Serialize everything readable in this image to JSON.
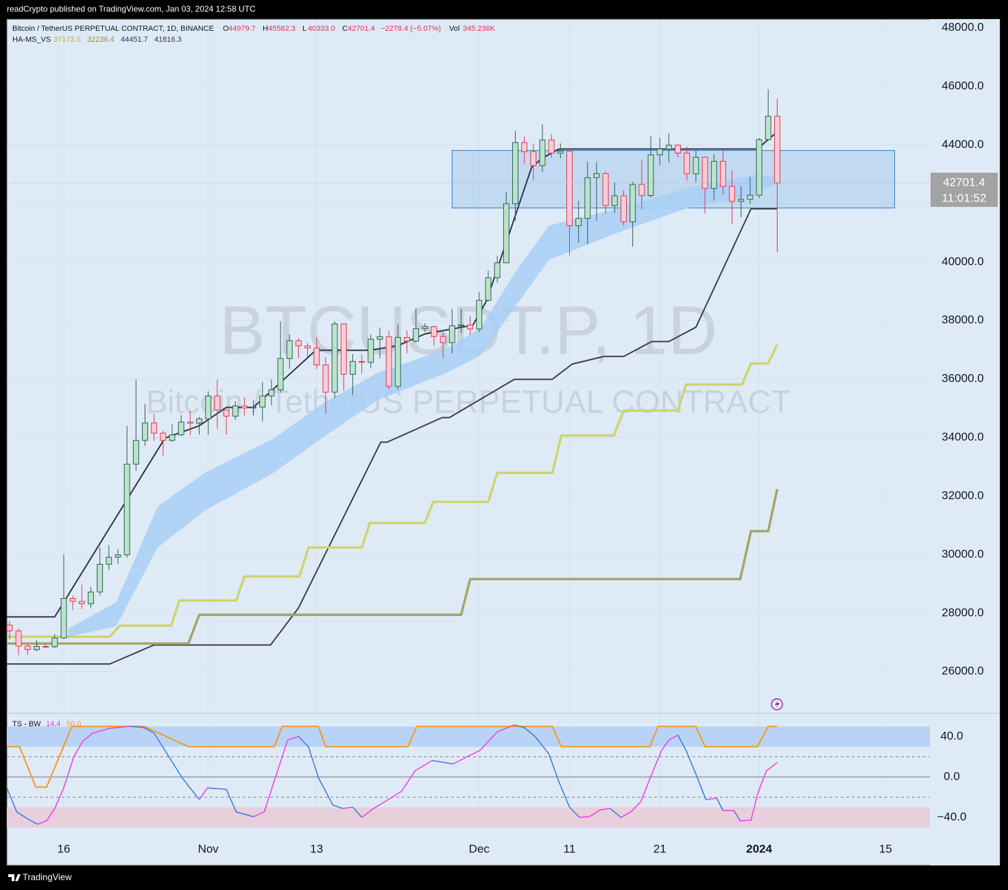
{
  "header": {
    "publisher": "readCrypto published on TradingView.com, Jan 03, 2024 12:58 UTC",
    "brand": "TradingView"
  },
  "chart_data": [
    {
      "type": "candlestick",
      "title": "Bitcoin / TetherUS PERPETUAL CONTRACT, 1D, BINANCE",
      "watermark": "BTCUSDT.P, 1D",
      "watermark_subtitle": "Bitcoin / TetherUS PERPETUAL CONTRACT",
      "ohlc_legend": [
        {
          "label": "O",
          "value": "44979.7"
        },
        {
          "label": "H",
          "value": "45582.3"
        },
        {
          "label": "L",
          "value": "40333.0"
        },
        {
          "label": "C",
          "value": "42701.4"
        }
      ],
      "change": "−2278.4 (−5.07%)",
      "volume_label": "Vol",
      "volume": "345.236K",
      "indicator_name": "HA-MS_VS",
      "indicator_values": [
        {
          "value": "37173.5",
          "color": "#b4b82c"
        },
        {
          "value": "32236.4",
          "color": "#8e9040"
        },
        {
          "value": "44451.7",
          "color": "#2f3440"
        },
        {
          "value": "41816.3",
          "color": "#2f3440"
        }
      ],
      "countdown": "11:01:52",
      "up_color": "#b9e4c9",
      "up_border": "#2e5c52",
      "down_color": "#f8cdd6",
      "down_border": "#e0334f",
      "xlim": [
        -0.3,
        101.9
      ],
      "ylim": [
        24600,
        48250
      ],
      "yticks": [
        {
          "value": 26000,
          "label": "26000.0"
        },
        {
          "value": 28000,
          "label": "28000.0"
        },
        {
          "value": 30000,
          "label": "30000.0"
        },
        {
          "value": 32000,
          "label": "32000.0"
        },
        {
          "value": 34000,
          "label": "34000.0"
        },
        {
          "value": 36000,
          "label": "36000.0"
        },
        {
          "value": 38000,
          "label": "38000.0"
        },
        {
          "value": 40000,
          "label": "40000.0"
        },
        {
          "value": 42000,
          "label": "42000.0"
        },
        {
          "value": 44000,
          "label": "44000.0"
        },
        {
          "value": 46000,
          "label": "46000.0"
        },
        {
          "value": 48000,
          "label": "48000.0"
        }
      ],
      "grid": true,
      "open": [
        27590,
        27390,
        26870,
        26750,
        26860,
        26850,
        27150,
        28500,
        28400,
        28320,
        28720,
        29670,
        29910,
        29990,
        33090,
        33900,
        34500,
        34150,
        33900,
        34090,
        34530,
        34490,
        34640,
        35420,
        34940,
        34730,
        35080,
        35010,
        35040,
        35420,
        35630,
        36700,
        37310,
        37130,
        37060,
        36480,
        35550,
        37880,
        36160,
        36600,
        36570,
        37360,
        37450,
        35750,
        37420,
        37290,
        37720,
        37790,
        37450,
        37240,
        37820,
        37850,
        37710,
        38690,
        39460,
        39970,
        41990,
        44080,
        43770,
        43290,
        44170,
        43720,
        43790,
        41240,
        41490,
        42880,
        43020,
        41930,
        42260,
        41370,
        42650,
        42270,
        43660,
        43860,
        43990,
        43720,
        43010,
        43580,
        42510,
        43440,
        42580,
        42070,
        42140,
        42280,
        44180,
        44979.7
      ],
      "high": [
        27730,
        27480,
        26940,
        27080,
        26970,
        27280,
        30000,
        28600,
        28970,
        28900,
        30250,
        30320,
        30180,
        34400,
        35980,
        35150,
        34800,
        34230,
        34450,
        34760,
        34900,
        34700,
        35580,
        35980,
        34950,
        35240,
        35380,
        35280,
        35900,
        35980,
        37970,
        37520,
        37400,
        37230,
        37420,
        36750,
        37970,
        37900,
        36850,
        36850,
        37520,
        37750,
        37650,
        37880,
        37660,
        38420,
        37900,
        37830,
        37580,
        38400,
        38400,
        38150,
        38980,
        39700,
        40200,
        42400,
        44480,
        44290,
        44050,
        44700,
        44370,
        44050,
        43800,
        42090,
        43430,
        43420,
        43090,
        42720,
        42440,
        42750,
        43480,
        44290,
        44240,
        44400,
        44020,
        43940,
        43800,
        43600,
        43690,
        43800,
        43130,
        42600,
        42900,
        44240,
        45900,
        45582.3
      ],
      "low": [
        27100,
        26560,
        26560,
        26700,
        26810,
        26800,
        27110,
        28100,
        28140,
        28170,
        28600,
        29470,
        29680,
        29890,
        32860,
        33710,
        33880,
        33370,
        33850,
        34050,
        34070,
        34100,
        34100,
        34300,
        34100,
        34600,
        34750,
        34750,
        34550,
        35100,
        35530,
        36350,
        36710,
        36760,
        36340,
        34800,
        35350,
        35600,
        35450,
        36180,
        36380,
        36700,
        35650,
        35630,
        36880,
        37250,
        37610,
        37120,
        36700,
        36880,
        37570,
        37500,
        37610,
        38650,
        39290,
        39970,
        41400,
        43350,
        42800,
        43080,
        43560,
        43550,
        40220,
        40660,
        40600,
        41410,
        41660,
        41670,
        41250,
        40520,
        41800,
        42200,
        43310,
        43400,
        43580,
        42780,
        42730,
        41650,
        42100,
        42300,
        41300,
        41520,
        41980,
        42180,
        44150,
        40333.0
      ],
      "close": [
        27390,
        26870,
        26750,
        26860,
        26850,
        27150,
        28500,
        28400,
        28320,
        28720,
        29670,
        29910,
        29990,
        33090,
        33900,
        34500,
        34150,
        33900,
        34090,
        34530,
        34490,
        34640,
        35420,
        34940,
        34730,
        35080,
        35010,
        35040,
        35420,
        35630,
        36700,
        37310,
        37130,
        37060,
        36480,
        35550,
        37880,
        36160,
        36600,
        36570,
        37360,
        37450,
        35750,
        37420,
        37290,
        37720,
        37790,
        37450,
        37240,
        37820,
        37850,
        37710,
        38690,
        39460,
        39970,
        41990,
        44080,
        43770,
        43290,
        44170,
        43720,
        43790,
        41240,
        41490,
        42880,
        43020,
        41930,
        42260,
        41370,
        42650,
        42270,
        43660,
        43860,
        43990,
        43720,
        43010,
        43580,
        42510,
        43440,
        42580,
        42070,
        42140,
        42280,
        44180,
        44979.7,
        42701.4
      ],
      "band": {
        "color": "#a8cff6",
        "x": [
          6.5,
          11.8,
          16.4,
          21.7,
          29.3,
          34.6,
          40.7,
          48.3,
          52.1,
          55.9,
          59.7,
          67.3,
          74.9,
          82.5,
          85.0
        ],
        "upper": [
          27470,
          28360,
          31640,
          32810,
          33980,
          35150,
          36200,
          37020,
          37730,
          39600,
          41240,
          41820,
          42520,
          42990,
          42920
        ],
        "lower": [
          27190,
          27550,
          30240,
          31520,
          32810,
          33980,
          35270,
          36200,
          36790,
          38430,
          40070,
          41000,
          41820,
          42290,
          42690
        ]
      },
      "zone": {
        "color": "#7fb6e6",
        "border": "#2a7fc0",
        "x": [
          49.0,
          98.0
        ],
        "y": [
          41844,
          43810
        ]
      },
      "overlays": [
        {
          "color": "#2f3440",
          "width": 2,
          "x": [
            -0.3,
            5.0,
            17.2,
            21.0,
            24.0,
            27.0,
            33.9,
            39.9,
            43.0,
            46.0,
            51.3,
            52.8,
            57.8,
            58.9,
            60.8,
            82.8,
            85.0
          ],
          "values": [
            27870,
            27870,
            33980,
            34400,
            35030,
            35030,
            36980,
            36980,
            37140,
            37540,
            37840,
            38660,
            43230,
            43530,
            43860,
            43860,
            44451.7
          ]
        },
        {
          "color": "#3a3f4a",
          "width": 2,
          "x": [
            -0.3,
            11.1,
            16.0,
            28.9,
            32.0,
            41.1,
            41.8,
            47.9,
            48.7,
            55.9,
            60.1,
            62.3,
            65.8,
            68.0,
            71.1,
            73.0,
            76.0,
            82.1,
            85.0
          ],
          "values": [
            26260,
            26260,
            26910,
            26910,
            28180,
            33840,
            33840,
            34680,
            34680,
            35990,
            35990,
            36510,
            36770,
            36770,
            37280,
            37280,
            37770,
            41816.3,
            41816.3
          ]
        },
        {
          "color": "#cfd46c",
          "width": 3.5,
          "x": [
            -0.3,
            11.1,
            12.2,
            17.9,
            18.8,
            25.1,
            26.0,
            32.1,
            33.1,
            39.0,
            39.9,
            46.0,
            46.9,
            53.0,
            54.0,
            60.1,
            61.1,
            66.9,
            68.0,
            74.0,
            74.9,
            81.1,
            82.1,
            84.0,
            85.0
          ],
          "values": [
            27190,
            27190,
            27570,
            27570,
            28430,
            28430,
            29250,
            29250,
            30240,
            30240,
            31080,
            31080,
            31800,
            31800,
            32790,
            32790,
            34070,
            34070,
            34920,
            34920,
            35810,
            35810,
            36530,
            36530,
            37173.5
          ]
        },
        {
          "color": "#a3a566",
          "width": 3.5,
          "x": [
            -0.3,
            19.8,
            21.0,
            50.0,
            51.0,
            80.9,
            82.1,
            84.0,
            85.0
          ],
          "values": [
            26960,
            26960,
            27940,
            27940,
            29160,
            29160,
            30800,
            30800,
            32236.4
          ]
        }
      ]
    },
    {
      "type": "line",
      "title": "TS - BW",
      "legend_values": [
        {
          "value": "14.4",
          "color": "#e040e0"
        },
        {
          "value": "50.0",
          "color": "#f39a1e"
        }
      ],
      "xlim": [
        -0.3,
        101.9
      ],
      "ylim": [
        -51.5,
        62.4
      ],
      "yticks": [
        {
          "value": 40,
          "label": "40.0"
        },
        {
          "value": 0,
          "label": "0.0"
        },
        {
          "value": -40,
          "label": "−40.0"
        }
      ],
      "xticks": [
        {
          "value": 6,
          "label": "16"
        },
        {
          "value": 22,
          "label": "Nov"
        },
        {
          "value": 34,
          "label": "13"
        },
        {
          "value": 52,
          "label": "Dec"
        },
        {
          "value": 62,
          "label": "11"
        },
        {
          "value": 72,
          "label": "21"
        },
        {
          "value": 83,
          "label": "2024"
        },
        {
          "value": 97,
          "label": "15"
        }
      ],
      "zones": [
        {
          "from": 30,
          "to": 50,
          "color": "#b9d3f6"
        },
        {
          "from": -50,
          "to": -30,
          "color": "#e8cfdc"
        }
      ],
      "hlines": [
        {
          "value": 20,
          "dashed": true
        },
        {
          "value": 0,
          "dashed": false
        },
        {
          "value": -20,
          "dashed": true
        }
      ],
      "oscillator": {
        "up_color": "#ee3ce6",
        "down_color": "#3a78e0",
        "x": [
          -0.3,
          0.8,
          2.0,
          3.1,
          4.1,
          5.0,
          6.0,
          7.1,
          8.1,
          9.2,
          11.1,
          13.4,
          14.9,
          16.0,
          17.2,
          19.1,
          21.0,
          21.9,
          24.0,
          25.1,
          27.0,
          28.2,
          29.3,
          30.8,
          32.0,
          33.1,
          34.2,
          35.8,
          36.9,
          38.0,
          39.0,
          40.3,
          41.8,
          43.4,
          44.9,
          46.8,
          49.1,
          50.6,
          52.1,
          54.0,
          55.9,
          57.0,
          58.2,
          59.7,
          60.8,
          62.0,
          63.1,
          64.2,
          65.4,
          66.5,
          67.7,
          68.8,
          69.9,
          71.1,
          72.2,
          73.0,
          74.0,
          74.9,
          76.0,
          77.1,
          78.3,
          79.0,
          80.2,
          80.9,
          82.1,
          82.8,
          83.8,
          85.0
        ],
        "values": [
          -10.8,
          -34.6,
          -41.4,
          -46.8,
          -43.4,
          -31.2,
          -10.8,
          19.7,
          35.3,
          43.4,
          48.1,
          50.2,
          48.8,
          43.4,
          26.4,
          -0.7,
          -22.4,
          -10.8,
          -12.2,
          -34.6,
          -39.3,
          -34.6,
          -4.1,
          36.6,
          40.0,
          29.8,
          -0.7,
          -27.8,
          -31.2,
          -29.8,
          -40.0,
          -31.2,
          -23.1,
          -14.2,
          6.1,
          16.3,
          12.9,
          19.7,
          26.4,
          44.7,
          51.5,
          48.8,
          39.9,
          23.1,
          -4.1,
          -29.8,
          -40.0,
          -39.3,
          -32.5,
          -31.2,
          -40.0,
          -34.6,
          -24.4,
          2.7,
          26.4,
          36.6,
          41.4,
          26.4,
          2.7,
          -22.4,
          -21.0,
          -33.2,
          -33.2,
          -43.4,
          -42.7,
          -17.6,
          6.1,
          14.4
        ]
      },
      "signal": {
        "color": "#f39a1e",
        "x": [
          -0.3,
          1.1,
          2.9,
          4.1,
          6.9,
          14.9,
          19.8,
          29.3,
          30.2,
          34.2,
          35.0,
          44.1,
          45.1,
          60.1,
          61.1,
          70.9,
          71.8,
          76.0,
          77.0,
          82.8,
          84.0,
          85.0
        ],
        "values": [
          30,
          30,
          -10,
          -10,
          50,
          50,
          30,
          30,
          50,
          50,
          30,
          30,
          50,
          50,
          30,
          30,
          50,
          50,
          30,
          30,
          50,
          50
        ]
      }
    }
  ]
}
